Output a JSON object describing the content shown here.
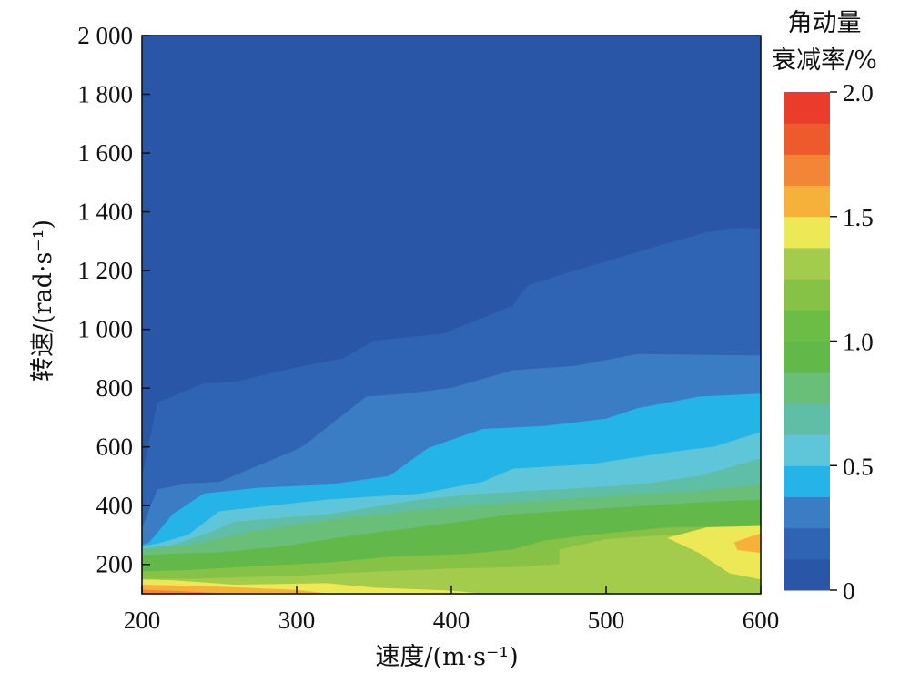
{
  "chart_data": {
    "type": "heatmap",
    "subtype": "filled-contour",
    "xlabel": "速度/(m·s⁻¹)",
    "ylabel": "转速/(rad·s⁻¹)",
    "xlim": [
      200,
      600
    ],
    "ylim": [
      100,
      2000
    ],
    "x_ticks": [
      {
        "value": 200,
        "label": "200"
      },
      {
        "value": 300,
        "label": "300"
      },
      {
        "value": 400,
        "label": "400"
      },
      {
        "value": 500,
        "label": "500"
      },
      {
        "value": 600,
        "label": "600"
      }
    ],
    "y_ticks": [
      {
        "value": 200,
        "label": "200"
      },
      {
        "value": 400,
        "label": "400"
      },
      {
        "value": 600,
        "label": "600"
      },
      {
        "value": 800,
        "label": "800"
      },
      {
        "value": 1000,
        "label": "1 000"
      },
      {
        "value": 1200,
        "label": "1 200"
      },
      {
        "value": 1400,
        "label": "1 400"
      },
      {
        "value": 1600,
        "label": "1 600"
      },
      {
        "value": 1800,
        "label": "1 800"
      },
      {
        "value": 2000,
        "label": "2 000"
      }
    ],
    "colorbar": {
      "title_line1": "角动量",
      "title_line2": "衰减率/%",
      "min": 0,
      "max": 2.0,
      "ticks": [
        {
          "value": 0,
          "label": "0"
        },
        {
          "value": 0.5,
          "label": "0.5"
        },
        {
          "value": 1.0,
          "label": "1.0"
        },
        {
          "value": 1.5,
          "label": "1.5"
        },
        {
          "value": 2.0,
          "label": "2.0"
        }
      ],
      "bands": [
        {
          "from": 0.0,
          "to": 0.125,
          "color": "#2a56a8"
        },
        {
          "from": 0.125,
          "to": 0.25,
          "color": "#2f64b4"
        },
        {
          "from": 0.25,
          "to": 0.375,
          "color": "#3a7dc4"
        },
        {
          "from": 0.375,
          "to": 0.5,
          "color": "#25b4e8"
        },
        {
          "from": 0.5,
          "to": 0.625,
          "color": "#5ec6d8"
        },
        {
          "from": 0.625,
          "to": 0.75,
          "color": "#5fbea6"
        },
        {
          "from": 0.75,
          "to": 0.875,
          "color": "#69be78"
        },
        {
          "from": 0.875,
          "to": 1.0,
          "color": "#62b848"
        },
        {
          "from": 1.0,
          "to": 1.125,
          "color": "#6cbd46"
        },
        {
          "from": 1.125,
          "to": 1.25,
          "color": "#86c246"
        },
        {
          "from": 1.25,
          "to": 1.375,
          "color": "#a3cb4c"
        },
        {
          "from": 1.375,
          "to": 1.5,
          "color": "#ece856"
        },
        {
          "from": 1.5,
          "to": 1.625,
          "color": "#f5b13a"
        },
        {
          "from": 1.625,
          "to": 1.75,
          "color": "#f38636"
        },
        {
          "from": 1.75,
          "to": 1.875,
          "color": "#ee5a2c"
        },
        {
          "from": 1.875,
          "to": 2.0,
          "color": "#ea3b2b"
        }
      ]
    },
    "contour_regions": [
      {
        "level": 0.0625,
        "color": "#2a56a8",
        "points": [
          [
            200,
            100
          ],
          [
            600,
            100
          ],
          [
            600,
            2000
          ],
          [
            200,
            2000
          ]
        ]
      },
      {
        "level": 0.1875,
        "color": "#2f64b4",
        "points": [
          [
            200,
            100
          ],
          [
            600,
            100
          ],
          [
            600,
            1340
          ],
          [
            590,
            1345
          ],
          [
            565,
            1330
          ],
          [
            525,
            1270
          ],
          [
            500,
            1230
          ],
          [
            480,
            1200
          ],
          [
            450,
            1150
          ],
          [
            445,
            1120
          ],
          [
            440,
            1080
          ],
          [
            395,
            985
          ],
          [
            350,
            960
          ],
          [
            330,
            900
          ],
          [
            300,
            870
          ],
          [
            260,
            820
          ],
          [
            240,
            815
          ],
          [
            210,
            750
          ],
          [
            200,
            490
          ]
        ]
      },
      {
        "level": 0.3125,
        "color": "#3a7dc4",
        "points": [
          [
            200,
            100
          ],
          [
            600,
            100
          ],
          [
            600,
            910
          ],
          [
            520,
            915
          ],
          [
            480,
            875
          ],
          [
            440,
            860
          ],
          [
            400,
            800
          ],
          [
            370,
            780
          ],
          [
            345,
            770
          ],
          [
            305,
            605
          ],
          [
            300,
            590
          ],
          [
            250,
            480
          ],
          [
            230,
            475
          ],
          [
            210,
            455
          ],
          [
            200,
            320
          ]
        ]
      },
      {
        "level": 0.4375,
        "color": "#25b4e8",
        "points": [
          [
            200,
            100
          ],
          [
            600,
            100
          ],
          [
            600,
            780
          ],
          [
            560,
            770
          ],
          [
            520,
            730
          ],
          [
            500,
            695
          ],
          [
            460,
            670
          ],
          [
            420,
            660
          ],
          [
            385,
            595
          ],
          [
            360,
            500
          ],
          [
            320,
            470
          ],
          [
            275,
            460
          ],
          [
            240,
            440
          ],
          [
            220,
            370
          ],
          [
            205,
            275
          ],
          [
            200,
            265
          ]
        ]
      },
      {
        "level": 0.5625,
        "color": "#5ec6d8",
        "points": [
          [
            200,
            100
          ],
          [
            600,
            100
          ],
          [
            600,
            650
          ],
          [
            570,
            600
          ],
          [
            540,
            580
          ],
          [
            490,
            540
          ],
          [
            440,
            525
          ],
          [
            420,
            480
          ],
          [
            380,
            440
          ],
          [
            320,
            420
          ],
          [
            250,
            380
          ],
          [
            230,
            300
          ],
          [
            210,
            270
          ],
          [
            200,
            260
          ]
        ]
      },
      {
        "level": 0.6875,
        "color": "#5fbea6",
        "points": [
          [
            200,
            100
          ],
          [
            600,
            100
          ],
          [
            600,
            560
          ],
          [
            560,
            500
          ],
          [
            520,
            470
          ],
          [
            470,
            455
          ],
          [
            420,
            440
          ],
          [
            380,
            420
          ],
          [
            320,
            370
          ],
          [
            260,
            345
          ],
          [
            245,
            310
          ],
          [
            220,
            265
          ],
          [
            200,
            255
          ]
        ]
      },
      {
        "level": 0.8125,
        "color": "#69be78",
        "points": [
          [
            200,
            100
          ],
          [
            600,
            100
          ],
          [
            600,
            470
          ],
          [
            560,
            450
          ],
          [
            500,
            430
          ],
          [
            440,
            410
          ],
          [
            380,
            385
          ],
          [
            320,
            350
          ],
          [
            270,
            310
          ],
          [
            230,
            265
          ],
          [
            200,
            250
          ]
        ]
      },
      {
        "level": 0.9375,
        "color": "#62b848",
        "points": [
          [
            200,
            100
          ],
          [
            600,
            100
          ],
          [
            600,
            420
          ],
          [
            560,
            410
          ],
          [
            500,
            390
          ],
          [
            440,
            370
          ],
          [
            400,
            340
          ],
          [
            340,
            300
          ],
          [
            290,
            260
          ],
          [
            250,
            240
          ],
          [
            220,
            235
          ],
          [
            200,
            230
          ]
        ]
      },
      {
        "level": 1.1875,
        "color": "#86c246",
        "points": [
          [
            200,
            100
          ],
          [
            600,
            100
          ],
          [
            600,
            330
          ],
          [
            540,
            325
          ],
          [
            490,
            300
          ],
          [
            460,
            280
          ],
          [
            440,
            250
          ],
          [
            410,
            235
          ],
          [
            360,
            225
          ],
          [
            320,
            205
          ],
          [
            280,
            195
          ],
          [
            230,
            180
          ],
          [
            200,
            175
          ]
        ]
      },
      {
        "level": 1.3125,
        "color": "#a3cb4c",
        "points": [
          [
            200,
            100
          ],
          [
            600,
            100
          ],
          [
            600,
            290
          ],
          [
            540,
            300
          ],
          [
            500,
            285
          ],
          [
            470,
            250
          ],
          [
            470,
            200
          ],
          [
            440,
            190
          ],
          [
            400,
            185
          ],
          [
            330,
            170
          ],
          [
            300,
            160
          ],
          [
            230,
            150
          ],
          [
            200,
            150
          ]
        ]
      },
      {
        "level": 1.4375,
        "color": "#ece856",
        "points": [
          [
            200,
            100
          ],
          [
            420,
            100
          ],
          [
            400,
            110
          ],
          [
            350,
            120
          ],
          [
            320,
            135
          ],
          [
            260,
            130
          ],
          [
            220,
            145
          ],
          [
            200,
            148
          ]
        ]
      },
      {
        "level": 1.4375,
        "color": "#ece856",
        "points": [
          [
            600,
            150
          ],
          [
            580,
            170
          ],
          [
            560,
            240
          ],
          [
            540,
            290
          ],
          [
            565,
            325
          ],
          [
            600,
            330
          ]
        ]
      },
      {
        "level": 1.5625,
        "color": "#f5b13a",
        "points": [
          [
            200,
            100
          ],
          [
            320,
            100
          ],
          [
            300,
            112
          ],
          [
            240,
            125
          ],
          [
            200,
            130
          ]
        ]
      },
      {
        "level": 1.5625,
        "color": "#f5b13a",
        "points": [
          [
            600,
            240
          ],
          [
            585,
            250
          ],
          [
            583,
            275
          ],
          [
            600,
            305
          ]
        ]
      },
      {
        "level": 1.6875,
        "color": "#f38636",
        "points": [
          [
            200,
            100
          ],
          [
            255,
            100
          ],
          [
            225,
            108
          ],
          [
            200,
            113
          ]
        ]
      }
    ]
  }
}
